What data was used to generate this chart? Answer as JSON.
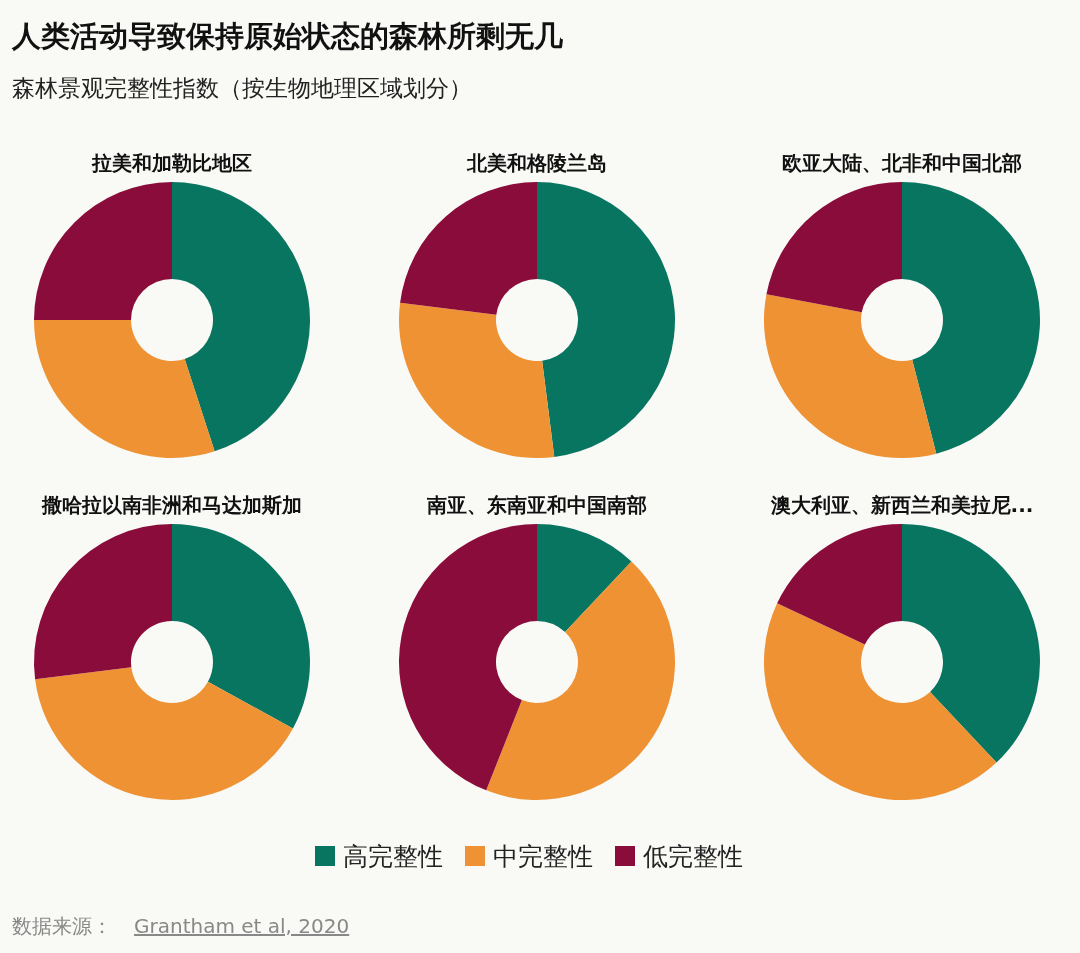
{
  "chart_data": [
    {
      "type": "other",
      "title": "人类活动导致保持原始状态的森林所剩无几",
      "subtitle": "森林景观完整性指数（按生物地理区域划分）",
      "annotations": [
        "数据来源：",
        "Grantham et al, 2020"
      ]
    },
    {
      "type": "donut",
      "title": "拉美和加勒比地区",
      "categories": [
        "高完整性",
        "中完整性",
        "低完整性"
      ],
      "values": [
        45,
        30,
        25
      ],
      "colors": [
        "#087560",
        "#ee9234",
        "#8a0c3a"
      ],
      "legend": "bottom"
    },
    {
      "type": "donut",
      "title": "北美和格陵兰岛",
      "categories": [
        null,
        null,
        null
      ],
      "values": [
        48,
        29,
        23
      ],
      "colors": [
        "#087560",
        "#ee9234",
        "#8a0c3a"
      ]
    },
    {
      "type": "donut",
      "title": "欧亚大陆、北非和中国北部",
      "categories": [
        null,
        null,
        null
      ],
      "values": [
        46,
        32,
        22
      ],
      "colors": [
        "#087560",
        "#ee9234",
        "#8a0c3a"
      ]
    },
    {
      "type": "donut",
      "title": "撒哈拉以南非洲和马达加斯加",
      "categories": [
        null,
        null,
        null
      ],
      "values": [
        33,
        40,
        27
      ],
      "colors": [
        "#087560",
        "#ee9234",
        "#8a0c3a"
      ]
    },
    {
      "type": "donut",
      "title": "南亚、东南亚和中国南部",
      "categories": [
        null,
        null,
        null
      ],
      "values": [
        12,
        44,
        44
      ],
      "colors": [
        "#087560",
        "#ee9234",
        "#8a0c3a"
      ]
    },
    {
      "type": "donut",
      "title": "澳大利亚、新西兰和美拉尼...",
      "categories": [
        null,
        null,
        null
      ],
      "values": [
        38,
        44,
        18
      ],
      "colors": [
        "#087560",
        "#ee9234",
        "#8a0c3a"
      ]
    }
  ]
}
